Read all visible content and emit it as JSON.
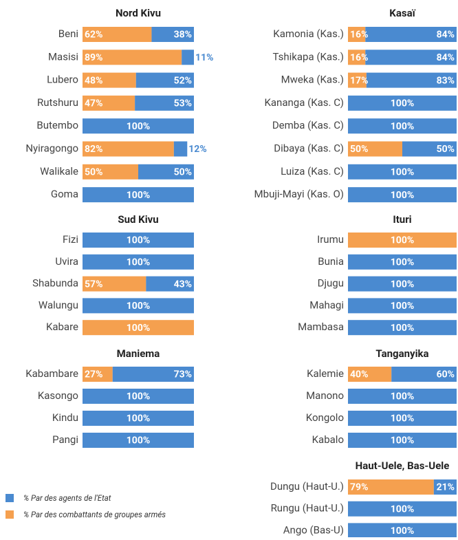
{
  "legend": [
    {
      "name": "% Par des agents de l'Etat",
      "color": "#4a8ad0"
    },
    {
      "name": "% Par des combattants de groupes armés",
      "color": "#f5a04f"
    }
  ],
  "chart_data": [
    {
      "type": "bar",
      "title": "Nord Kivu",
      "categories": [
        "Beni",
        "Masisi",
        "Lubero",
        "Rutshuru",
        "Butembo",
        "Nyiragongo",
        "Walikale",
        "Goma"
      ],
      "series": [
        {
          "color": "#f5a04f",
          "values": [
            62,
            89,
            48,
            47,
            0,
            82,
            50,
            0
          ],
          "value_labels": [
            "62%",
            "89%",
            "48%",
            "47%",
            null,
            "82%",
            "50%",
            null
          ]
        },
        {
          "color": "#4a8ad0",
          "values": [
            38,
            11,
            52,
            53,
            100,
            12,
            50,
            100
          ],
          "value_labels": [
            "38%",
            "11%",
            "52%",
            "53%",
            "100%",
            "12%",
            "50%",
            "100%"
          ]
        }
      ]
    },
    {
      "type": "bar",
      "title": "Sud Kivu",
      "categories": [
        "Fizi",
        "Uvira",
        "Shabunda",
        "Walungu",
        "Kabare"
      ],
      "series": [
        {
          "color": "#f5a04f",
          "values": [
            0,
            0,
            57,
            0,
            100
          ],
          "value_labels": [
            null,
            null,
            "57%",
            null,
            "100%"
          ]
        },
        {
          "color": "#4a8ad0",
          "values": [
            100,
            100,
            43,
            100,
            0
          ],
          "value_labels": [
            "100%",
            "100%",
            "43%",
            "100%",
            null
          ]
        }
      ]
    },
    {
      "type": "bar",
      "title": "Maniema",
      "categories": [
        "Kabambare",
        "Kasongo",
        "Kindu",
        "Pangi"
      ],
      "series": [
        {
          "color": "#f5a04f",
          "values": [
            27,
            0,
            0,
            0
          ],
          "value_labels": [
            "27%",
            null,
            null,
            null
          ]
        },
        {
          "color": "#4a8ad0",
          "values": [
            73,
            100,
            100,
            100
          ],
          "value_labels": [
            "73%",
            "100%",
            "100%",
            "100%"
          ]
        }
      ]
    },
    {
      "type": "bar",
      "title": "Kasaï",
      "categories": [
        "Kamonia (Kas.)",
        "Tshikapa (Kas.)",
        "Mweka (Kas.)",
        "Kananga (Kas. C)",
        "Demba (Kas. C)",
        "Dibaya (Kas. C)",
        "Luiza (Kas. C)",
        "Mbuji-Mayi (Kas. O)"
      ],
      "series": [
        {
          "color": "#f5a04f",
          "values": [
            16,
            16,
            17,
            0,
            0,
            50,
            0,
            0
          ],
          "value_labels": [
            "16%",
            "16%",
            "17%",
            null,
            null,
            "50%",
            null,
            null
          ]
        },
        {
          "color": "#4a8ad0",
          "values": [
            84,
            84,
            83,
            100,
            100,
            50,
            100,
            100
          ],
          "value_labels": [
            "84%",
            "84%",
            "83%",
            "100%",
            "100%",
            "50%",
            "100%",
            "100%"
          ]
        }
      ]
    },
    {
      "type": "bar",
      "title": "Ituri",
      "categories": [
        "Irumu",
        "Bunia",
        "Djugu",
        "Mahagi",
        "Mambasa"
      ],
      "series": [
        {
          "color": "#f5a04f",
          "values": [
            100,
            0,
            0,
            0,
            0
          ],
          "value_labels": [
            "100%",
            null,
            null,
            null,
            null
          ]
        },
        {
          "color": "#4a8ad0",
          "values": [
            0,
            100,
            100,
            100,
            100
          ],
          "value_labels": [
            null,
            "100%",
            "100%",
            "100%",
            "100%"
          ]
        }
      ]
    },
    {
      "type": "bar",
      "title": "Tanganyika",
      "categories": [
        "Kalemie",
        "Manono",
        "Kongolo",
        "Kabalo"
      ],
      "series": [
        {
          "color": "#f5a04f",
          "values": [
            40,
            0,
            0,
            0
          ],
          "value_labels": [
            "40%",
            null,
            null,
            null
          ]
        },
        {
          "color": "#4a8ad0",
          "values": [
            60,
            100,
            100,
            100
          ],
          "value_labels": [
            "60%",
            "100%",
            "100%",
            "100%"
          ]
        }
      ]
    },
    {
      "type": "bar",
      "title": "Haut-Uele, Bas-Uele",
      "categories": [
        "Dungu (Haut-U.)",
        "Rungu (Haut-U.)",
        "Ango (Bas-U)"
      ],
      "series": [
        {
          "color": "#f5a04f",
          "values": [
            79,
            0,
            0
          ],
          "value_labels": [
            "79%",
            null,
            null
          ]
        },
        {
          "color": "#4a8ad0",
          "values": [
            21,
            100,
            100
          ],
          "value_labels": [
            "21%",
            "100%",
            "100%"
          ]
        }
      ]
    }
  ]
}
